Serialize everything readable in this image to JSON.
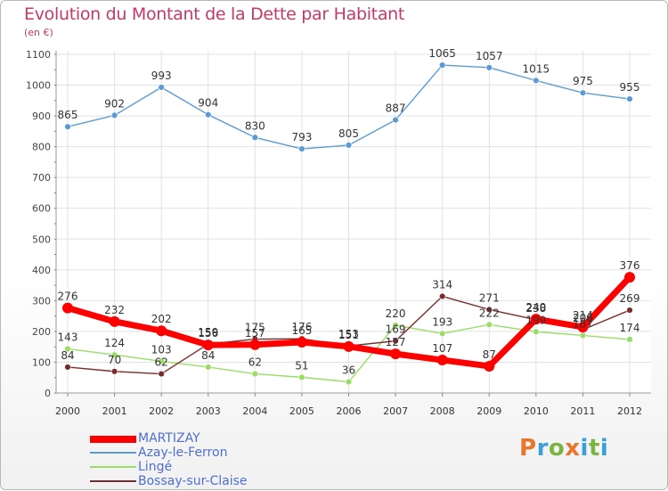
{
  "header": {
    "title": "Evolution du Montant de la Dette par Habitant",
    "subtitle": "(en €)"
  },
  "brand": {
    "text": "Proxiti",
    "letter_colors": [
      "#e8762d",
      "#3aa0d8",
      "#7cb342",
      "#e8762d",
      "#3aa0d8",
      "#7cb342",
      "#3aa0d8"
    ]
  },
  "chart_data": {
    "type": "line",
    "x": [
      "2000",
      "2001",
      "2002",
      "2003",
      "2004",
      "2005",
      "2006",
      "2007",
      "2008",
      "2009",
      "2010",
      "2011",
      "2012"
    ],
    "ylim": [
      0,
      1100
    ],
    "yticks": [
      0,
      100,
      200,
      300,
      400,
      500,
      600,
      700,
      800,
      900,
      1000,
      1100
    ],
    "grid": true,
    "legend_position": "bottom-left",
    "series": [
      {
        "name": "MARTIZAY",
        "color": "#ff0000",
        "values": [
          276,
          232,
          202,
          156,
          157,
          165,
          151,
          127,
          107,
          87,
          240,
          214,
          376
        ],
        "labels": [
          "276",
          "232",
          "202",
          "156",
          "157",
          "165",
          "151",
          "127",
          "107",
          "87",
          "240",
          "214",
          "376"
        ]
      },
      {
        "name": "Azay-le-Ferron",
        "color": "#5b9bd5",
        "values": [
          865,
          902,
          993,
          904,
          830,
          793,
          805,
          887,
          1065,
          1057,
          1015,
          975,
          955
        ],
        "labels": [
          "865",
          "902",
          "993",
          "904",
          "830",
          "793",
          "805",
          "887",
          "1065",
          "1057",
          "1015",
          "975",
          "955"
        ]
      },
      {
        "name": "Lingé",
        "color": "#99dd66",
        "values": [
          143,
          124,
          103,
          84,
          62,
          51,
          36,
          220,
          193,
          222,
          199,
          187,
          174
        ],
        "labels": [
          "143",
          "124",
          "103",
          "84",
          "62",
          "51",
          "36",
          "220",
          "193",
          "222",
          "199",
          "187",
          "174"
        ]
      },
      {
        "name": "Bossay-sur-Claise",
        "color": "#7a2c2c",
        "values": [
          84,
          70,
          62,
          159,
          175,
          176,
          153,
          169,
          314,
          271,
          238,
          206,
          269
        ],
        "labels": [
          "84",
          "70",
          "62",
          "159",
          "175",
          "176",
          "153",
          "169",
          "314",
          "271",
          "238",
          "206",
          "269"
        ]
      }
    ]
  }
}
